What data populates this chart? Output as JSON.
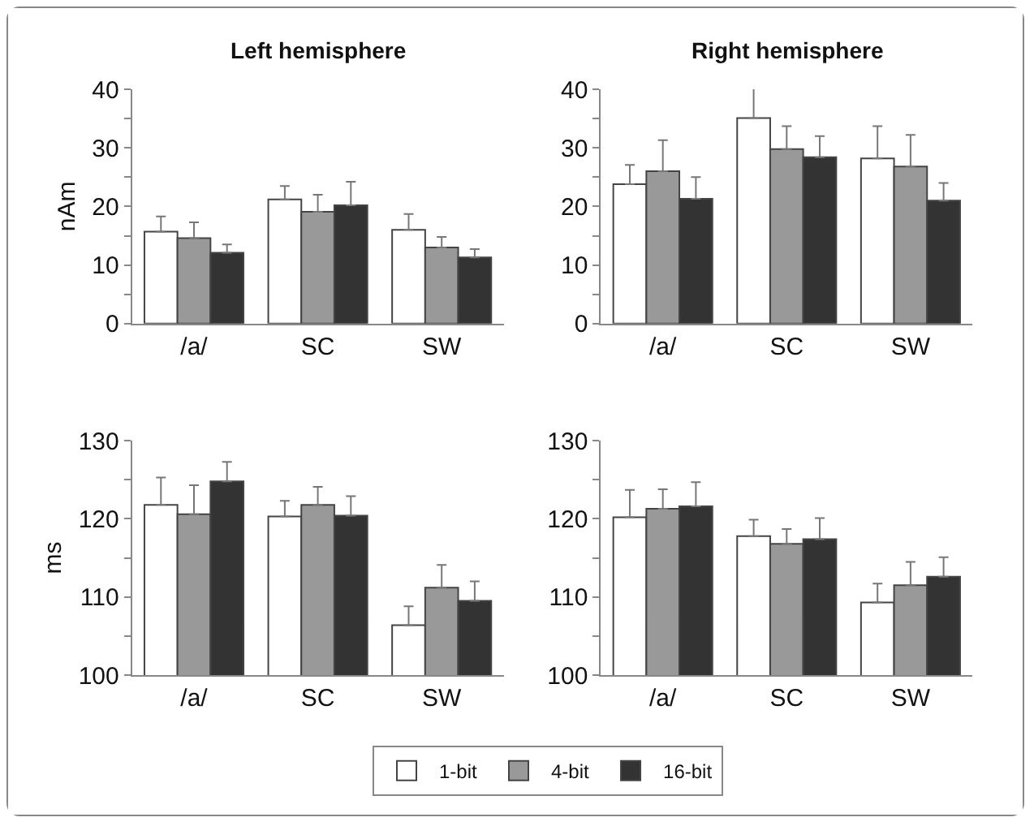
{
  "chart_data": [
    {
      "type": "bar",
      "title": "Left hemisphere",
      "ylabel": "nAm",
      "categories": [
        "/a/",
        "SC",
        "SW"
      ],
      "ylim": [
        0,
        40
      ],
      "yticks": [
        0,
        {
          "value": 5,
          "label": null
        },
        10,
        {
          "value": 15,
          "label": null
        },
        20,
        {
          "value": 25,
          "label": null
        },
        30,
        {
          "value": 35,
          "label": null
        },
        40
      ],
      "grid": false,
      "legend": "bottom",
      "series": [
        {
          "name": "1-bit",
          "color": "#ffffff",
          "values": [
            15.7,
            21.2,
            16.0
          ],
          "errors": [
            [
              15.7,
              18.3
            ],
            [
              21.2,
              23.5
            ],
            [
              16.0,
              18.7
            ]
          ]
        },
        {
          "name": "4-bit",
          "color": "#999999",
          "values": [
            14.6,
            19.1,
            13.0
          ],
          "errors": [
            [
              14.6,
              17.3
            ],
            [
              19.1,
              22.0
            ],
            [
              13.0,
              14.8
            ]
          ]
        },
        {
          "name": "16-bit",
          "color": "#333333",
          "values": [
            12.1,
            20.2,
            11.3
          ],
          "errors": [
            [
              12.1,
              13.5
            ],
            [
              20.2,
              24.2
            ],
            [
              11.3,
              12.7
            ]
          ]
        }
      ]
    },
    {
      "type": "bar",
      "title": "Right hemisphere",
      "categories": [
        "/a/",
        "SC",
        "SW"
      ],
      "ylim": [
        0,
        40
      ],
      "yticks": [
        0,
        {
          "value": 5,
          "label": null
        },
        10,
        {
          "value": 15,
          "label": null
        },
        20,
        {
          "value": 25,
          "label": null
        },
        30,
        {
          "value": 35,
          "label": null
        },
        40
      ],
      "grid": false,
      "legend": "bottom",
      "series": [
        {
          "name": "1-bit",
          "color": "#ffffff",
          "values": [
            23.8,
            35.1,
            28.2
          ],
          "errors": [
            [
              23.8,
              27.1
            ],
            [
              35.1,
              40.3
            ],
            [
              28.2,
              33.7
            ]
          ]
        },
        {
          "name": "4-bit",
          "color": "#999999",
          "values": [
            26.0,
            29.8,
            26.8
          ],
          "errors": [
            [
              26.0,
              31.3
            ],
            [
              29.8,
              33.7
            ],
            [
              26.8,
              32.2
            ]
          ]
        },
        {
          "name": "16-bit",
          "color": "#333333",
          "values": [
            21.3,
            28.4,
            21.0
          ],
          "errors": [
            [
              21.3,
              25.0
            ],
            [
              28.4,
              32.0
            ],
            [
              21.0,
              24.0
            ]
          ]
        }
      ]
    },
    {
      "type": "bar",
      "ylabel": "ms",
      "categories": [
        "/a/",
        "SC",
        "SW"
      ],
      "ylim": [
        100,
        130
      ],
      "yticks": [
        100,
        {
          "value": 105,
          "label": null
        },
        110,
        {
          "value": 115,
          "label": null
        },
        120,
        {
          "value": 125,
          "label": null
        },
        130
      ],
      "grid": false,
      "legend": "bottom",
      "series": [
        {
          "name": "1-bit",
          "color": "#ffffff",
          "values": [
            121.8,
            120.3,
            106.4
          ],
          "errors": [
            [
              121.8,
              125.3
            ],
            [
              120.3,
              122.3
            ],
            [
              106.4,
              108.8
            ]
          ]
        },
        {
          "name": "4-bit",
          "color": "#999999",
          "values": [
            120.6,
            121.8,
            111.2
          ],
          "errors": [
            [
              120.6,
              124.3
            ],
            [
              121.8,
              124.1
            ],
            [
              111.2,
              114.1
            ]
          ]
        },
        {
          "name": "16-bit",
          "color": "#333333",
          "values": [
            124.8,
            120.4,
            109.5
          ],
          "errors": [
            [
              124.8,
              127.3
            ],
            [
              120.4,
              122.9
            ],
            [
              109.5,
              112.0
            ]
          ]
        }
      ]
    },
    {
      "type": "bar",
      "categories": [
        "/a/",
        "SC",
        "SW"
      ],
      "ylim": [
        100,
        130
      ],
      "yticks": [
        100,
        {
          "value": 105,
          "label": null
        },
        110,
        {
          "value": 115,
          "label": null
        },
        120,
        {
          "value": 125,
          "label": null
        },
        130
      ],
      "grid": false,
      "legend": "bottom",
      "series": [
        {
          "name": "1-bit",
          "color": "#ffffff",
          "values": [
            120.2,
            117.8,
            109.3
          ],
          "errors": [
            [
              120.2,
              123.7
            ],
            [
              117.8,
              119.9
            ],
            [
              109.3,
              111.7
            ]
          ]
        },
        {
          "name": "4-bit",
          "color": "#999999",
          "values": [
            121.3,
            116.8,
            111.5
          ],
          "errors": [
            [
              121.3,
              123.8
            ],
            [
              116.8,
              118.7
            ],
            [
              111.5,
              114.5
            ]
          ]
        },
        {
          "name": "16-bit",
          "color": "#333333",
          "values": [
            121.6,
            117.4,
            112.6
          ],
          "errors": [
            [
              121.6,
              124.7
            ],
            [
              117.4,
              120.1
            ],
            [
              112.6,
              115.1
            ]
          ]
        }
      ]
    }
  ]
}
